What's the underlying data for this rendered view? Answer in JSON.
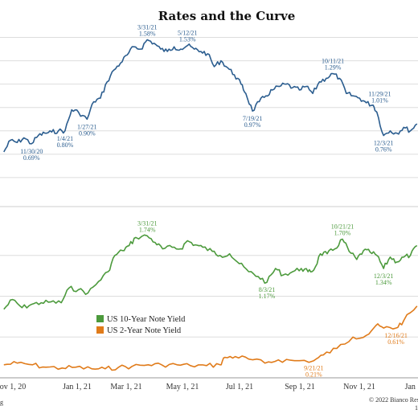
{
  "chart_data": {
    "type": "line",
    "title": "Rates and the Curve",
    "credit": "© 2022 Bianco Res",
    "credit_sub": "1",
    "left_fragment": "g",
    "x_ticks": [
      "ov 1, 20",
      "Jan 1, 21",
      "Mar 1, 21",
      "May 1, 21",
      "Jul 1, 21",
      "Sep 1, 21",
      "Nov 1, 21",
      "Jan 1"
    ],
    "colors": {
      "top": "#2b5d8f",
      "ten_year": "#4c9a3c",
      "two_year": "#e07b1a",
      "grid": "#dddddd"
    },
    "legend": [
      {
        "label": "US 10-Year Note Yield",
        "color": "#4c9a3c"
      },
      {
        "label": "US 2-Year Note Yield",
        "color": "#e07b1a"
      }
    ],
    "top_series": {
      "points": [
        [
          "2020-11-01",
          0.62
        ],
        [
          "2020-11-08",
          0.72
        ],
        [
          "2020-11-15",
          0.7
        ],
        [
          "2020-11-22",
          0.74
        ],
        [
          "2020-11-30",
          0.69
        ],
        [
          "2020-12-07",
          0.76
        ],
        [
          "2020-12-14",
          0.78
        ],
        [
          "2020-12-21",
          0.79
        ],
        [
          "2020-12-28",
          0.8
        ],
        [
          "2021-01-04",
          0.8
        ],
        [
          "2021-01-11",
          0.98
        ],
        [
          "2021-01-18",
          0.96
        ],
        [
          "2021-01-27",
          0.9
        ],
        [
          "2021-02-03",
          1.05
        ],
        [
          "2021-02-10",
          1.08
        ],
        [
          "2021-02-17",
          1.22
        ],
        [
          "2021-02-24",
          1.32
        ],
        [
          "2021-03-03",
          1.38
        ],
        [
          "2021-03-10",
          1.45
        ],
        [
          "2021-03-17",
          1.52
        ],
        [
          "2021-03-24",
          1.5
        ],
        [
          "2021-03-31",
          1.58
        ],
        [
          "2021-04-07",
          1.55
        ],
        [
          "2021-04-14",
          1.5
        ],
        [
          "2021-04-21",
          1.48
        ],
        [
          "2021-04-28",
          1.52
        ],
        [
          "2021-05-05",
          1.5
        ],
        [
          "2021-05-12",
          1.53
        ],
        [
          "2021-05-19",
          1.5
        ],
        [
          "2021-05-26",
          1.48
        ],
        [
          "2021-06-02",
          1.46
        ],
        [
          "2021-06-09",
          1.35
        ],
        [
          "2021-06-16",
          1.4
        ],
        [
          "2021-06-23",
          1.34
        ],
        [
          "2021-06-30",
          1.28
        ],
        [
          "2021-07-07",
          1.2
        ],
        [
          "2021-07-12",
          1.12
        ],
        [
          "2021-07-19",
          0.97
        ],
        [
          "2021-07-26",
          1.05
        ],
        [
          "2021-08-02",
          1.1
        ],
        [
          "2021-08-09",
          1.15
        ],
        [
          "2021-08-16",
          1.18
        ],
        [
          "2021-08-23",
          1.2
        ],
        [
          "2021-08-30",
          1.17
        ],
        [
          "2021-09-06",
          1.15
        ],
        [
          "2021-09-13",
          1.18
        ],
        [
          "2021-09-20",
          1.12
        ],
        [
          "2021-09-27",
          1.22
        ],
        [
          "2021-10-04",
          1.25
        ],
        [
          "2021-10-11",
          1.29
        ],
        [
          "2021-10-18",
          1.25
        ],
        [
          "2021-10-25",
          1.12
        ],
        [
          "2021-11-01",
          1.1
        ],
        [
          "2021-11-08",
          1.08
        ],
        [
          "2021-11-15",
          1.04
        ],
        [
          "2021-11-22",
          1.02
        ],
        [
          "2021-11-26",
          0.96
        ],
        [
          "2021-12-03",
          0.76
        ],
        [
          "2021-12-10",
          0.8
        ],
        [
          "2021-12-17",
          0.78
        ],
        [
          "2021-12-24",
          0.83
        ],
        [
          "2021-12-31",
          0.8
        ],
        [
          "2022-01-07",
          0.86
        ]
      ],
      "annotations": [
        {
          "date": "2020-11-30",
          "value": 0.69,
          "label": "11/30/20",
          "value_label": "0.69%",
          "pos": "below"
        },
        {
          "date": "2021-01-04",
          "value": 0.8,
          "label": "1/4/21",
          "value_label": "0.80%",
          "pos": "below"
        },
        {
          "date": "2021-01-27",
          "value": 0.9,
          "label": "1/27/21",
          "value_label": "0.90%",
          "pos": "below"
        },
        {
          "date": "2021-03-31",
          "value": 1.58,
          "label": "3/31/21",
          "value_label": "1.58%",
          "pos": "above"
        },
        {
          "date": "2021-05-12",
          "value": 1.53,
          "label": "5/12/21",
          "value_label": "1.53%",
          "pos": "above"
        },
        {
          "date": "2021-07-19",
          "value": 0.97,
          "label": "7/19/21",
          "value_label": "0.97%",
          "pos": "below"
        },
        {
          "date": "2021-10-11",
          "value": 1.29,
          "label": "10/11/21",
          "value_label": "1.29%",
          "pos": "above"
        },
        {
          "date": "2021-11-29",
          "value": 1.01,
          "label": "11/29/21",
          "value_label": "1.01%",
          "pos": "above"
        },
        {
          "date": "2021-12-03",
          "value": 0.76,
          "label": "12/3/21",
          "value_label": "0.76%",
          "pos": "below"
        }
      ]
    },
    "ten_year": {
      "name": "US 10-Year Note Yield",
      "points": [
        [
          "2020-11-01",
          0.84
        ],
        [
          "2020-11-10",
          0.96
        ],
        [
          "2020-11-20",
          0.86
        ],
        [
          "2020-11-30",
          0.9
        ],
        [
          "2020-12-10",
          0.92
        ],
        [
          "2020-12-20",
          0.93
        ],
        [
          "2020-12-31",
          0.92
        ],
        [
          "2021-01-08",
          1.1
        ],
        [
          "2021-01-18",
          1.08
        ],
        [
          "2021-01-28",
          1.04
        ],
        [
          "2021-02-08",
          1.18
        ],
        [
          "2021-02-18",
          1.3
        ],
        [
          "2021-02-25",
          1.5
        ],
        [
          "2021-03-05",
          1.56
        ],
        [
          "2021-03-12",
          1.62
        ],
        [
          "2021-03-19",
          1.72
        ],
        [
          "2021-03-31",
          1.74
        ],
        [
          "2021-04-08",
          1.66
        ],
        [
          "2021-04-16",
          1.58
        ],
        [
          "2021-04-26",
          1.6
        ],
        [
          "2021-05-05",
          1.58
        ],
        [
          "2021-05-12",
          1.68
        ],
        [
          "2021-05-20",
          1.63
        ],
        [
          "2021-05-28",
          1.6
        ],
        [
          "2021-06-07",
          1.55
        ],
        [
          "2021-06-15",
          1.5
        ],
        [
          "2021-06-25",
          1.52
        ],
        [
          "2021-07-05",
          1.4
        ],
        [
          "2021-07-15",
          1.3
        ],
        [
          "2021-07-25",
          1.24
        ],
        [
          "2021-08-03",
          1.17
        ],
        [
          "2021-08-12",
          1.34
        ],
        [
          "2021-08-20",
          1.26
        ],
        [
          "2021-08-30",
          1.3
        ],
        [
          "2021-09-08",
          1.34
        ],
        [
          "2021-09-15",
          1.3
        ],
        [
          "2021-09-21",
          1.32
        ],
        [
          "2021-09-28",
          1.52
        ],
        [
          "2021-10-05",
          1.52
        ],
        [
          "2021-10-13",
          1.58
        ],
        [
          "2021-10-21",
          1.7
        ],
        [
          "2021-10-28",
          1.55
        ],
        [
          "2021-11-05",
          1.45
        ],
        [
          "2021-11-12",
          1.56
        ],
        [
          "2021-11-19",
          1.54
        ],
        [
          "2021-11-26",
          1.5
        ],
        [
          "2021-12-03",
          1.34
        ],
        [
          "2021-12-10",
          1.48
        ],
        [
          "2021-12-17",
          1.42
        ],
        [
          "2021-12-24",
          1.48
        ],
        [
          "2021-12-31",
          1.5
        ],
        [
          "2022-01-07",
          1.62
        ]
      ],
      "annotations": [
        {
          "date": "2021-03-31",
          "value": 1.74,
          "label": "3/31/21",
          "value_label": "1.74%",
          "pos": "above"
        },
        {
          "date": "2021-08-03",
          "value": 1.17,
          "label": "8/3/21",
          "value_label": "1.17%",
          "pos": "below"
        },
        {
          "date": "2021-10-21",
          "value": 1.7,
          "label": "10/21/21",
          "value_label": "1.70%",
          "pos": "above"
        },
        {
          "date": "2021-12-03",
          "value": 1.34,
          "label": "12/3/21",
          "value_label": "1.34%",
          "pos": "below"
        }
      ]
    },
    "two_year": {
      "name": "US 2-Year Note Yield",
      "points": [
        [
          "2020-11-01",
          0.16
        ],
        [
          "2020-11-15",
          0.18
        ],
        [
          "2020-12-01",
          0.16
        ],
        [
          "2020-12-15",
          0.13
        ],
        [
          "2021-01-01",
          0.12
        ],
        [
          "2021-01-15",
          0.13
        ],
        [
          "2021-02-01",
          0.11
        ],
        [
          "2021-02-15",
          0.11
        ],
        [
          "2021-03-01",
          0.13
        ],
        [
          "2021-03-15",
          0.14
        ],
        [
          "2021-04-01",
          0.16
        ],
        [
          "2021-04-15",
          0.16
        ],
        [
          "2021-05-01",
          0.16
        ],
        [
          "2021-05-15",
          0.15
        ],
        [
          "2021-06-01",
          0.15
        ],
        [
          "2021-06-15",
          0.16
        ],
        [
          "2021-06-20",
          0.25
        ],
        [
          "2021-07-01",
          0.26
        ],
        [
          "2021-07-15",
          0.23
        ],
        [
          "2021-08-01",
          0.18
        ],
        [
          "2021-08-15",
          0.22
        ],
        [
          "2021-09-01",
          0.21
        ],
        [
          "2021-09-21",
          0.21
        ],
        [
          "2021-10-01",
          0.28
        ],
        [
          "2021-10-15",
          0.36
        ],
        [
          "2021-11-01",
          0.5
        ],
        [
          "2021-11-15",
          0.52
        ],
        [
          "2021-11-25",
          0.64
        ],
        [
          "2021-12-03",
          0.61
        ],
        [
          "2021-12-16",
          0.61
        ],
        [
          "2021-12-24",
          0.7
        ],
        [
          "2022-01-07",
          0.88
        ]
      ],
      "annotations": [
        {
          "date": "2021-09-21",
          "value": 0.21,
          "label": "9/21/21",
          "value_label": "0.21%",
          "pos": "below"
        },
        {
          "date": "2021-12-16",
          "value": 0.61,
          "label": "12/16/21",
          "value_label": "0.61%",
          "pos": "below"
        }
      ]
    },
    "top_ylim": [
      0.2,
      1.7
    ],
    "bottom_ylim": [
      0.0,
      2.0
    ],
    "xlim": [
      "2020-10-28",
      "2022-01-08"
    ],
    "grid": true
  }
}
